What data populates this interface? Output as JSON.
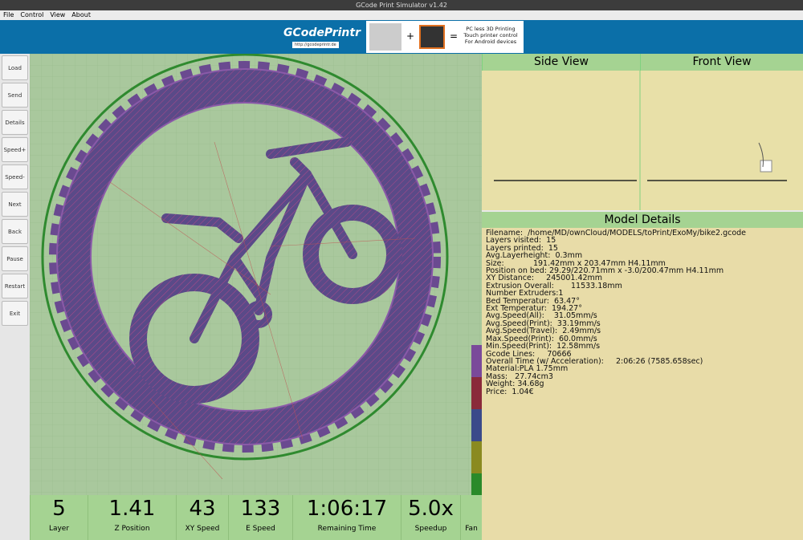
{
  "window": {
    "title": "GCode Print Simulator v1.42"
  },
  "menu": [
    "File",
    "Control",
    "View",
    "About"
  ],
  "banner": {
    "logo": "GCodePrintr",
    "url": "http://gcodeprintr.de",
    "ad": [
      "PC less 3D Printing",
      "Touch printer control",
      "For Android devices"
    ]
  },
  "buttons": [
    "Load",
    "Send",
    "Details",
    "Speed+",
    "Speed-",
    "Next",
    "Back",
    "Pause",
    "Restart",
    "Exit"
  ],
  "views": [
    "Side View",
    "Front View"
  ],
  "details": {
    "title": "Model Details",
    "lines": [
      "Filename:  /home/MD/ownCloud/MODELS/toPrint/ExoMy/bike2.gcode",
      "Layers visited:  15",
      "Layers printed:  15",
      "Avg.Layerheight:  0.3mm",
      "Size:            191.42mm x 203.47mm H4.11mm",
      "Position on bed: 29.29/220.71mm x -3.0/200.47mm H4.11mm",
      "XY Distance:     245001.42mm",
      "Extrusion Overall:       11533.18mm",
      "Number Extruders:1",
      "Bed Temperatur:  63.47°",
      "Ext Temperatur:  194.27°",
      "Avg.Speed(All):    31.05mm/s",
      "Avg.Speed(Print):  33.19mm/s",
      "Avg.Speed(Travel):  2.49mm/s",
      "Max.Speed(Print):  60.0mm/s",
      "Min.Speed(Print):  12.58mm/s",
      "Gcode Lines:     70666",
      "Overall Time (w/ Acceleration):     2:06:26 (7585.658sec)",
      "Material:PLA 1.75mm",
      "Mass:   27.74cm3",
      "Weight: 34.68g",
      "Price:  1.04€"
    ]
  },
  "stats": [
    {
      "value": "5",
      "label": "Layer"
    },
    {
      "value": "1.41",
      "label": "Z Position"
    },
    {
      "value": "43",
      "label": "XY Speed"
    },
    {
      "value": "133",
      "label": "E Speed"
    },
    {
      "value": "1:06:17",
      "label": "Remaining Time"
    },
    {
      "value": "5.0x",
      "label": "Speedup"
    },
    {
      "value": "",
      "label": "Fan"
    }
  ]
}
